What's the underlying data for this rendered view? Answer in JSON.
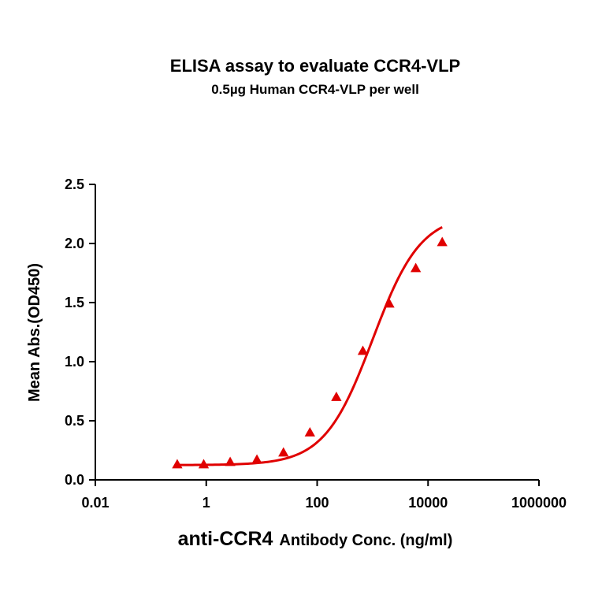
{
  "chart_data": {
    "type": "scatter",
    "title": "ELISA assay to evaluate CCR4-VLP",
    "subtitle": "0.5µg Human CCR4-VLP per well",
    "xlabel_main": "anti-CCR4",
    "xlabel_rest": "Antibody Conc. (ng/ml)",
    "ylabel": "Mean Abs.(OD450)",
    "x_scale": "log",
    "xlim": [
      0.01,
      1000000
    ],
    "ylim": [
      0.0,
      2.5
    ],
    "x_ticks": [
      0.01,
      1,
      100,
      10000,
      1000000
    ],
    "x_tick_labels": [
      "0.01",
      "1",
      "100",
      "10000",
      "1000000"
    ],
    "y_ticks": [
      0.0,
      0.5,
      1.0,
      1.5,
      2.0,
      2.5
    ],
    "y_tick_labels": [
      "0.0",
      "0.5",
      "1.0",
      "1.5",
      "2.0",
      "2.5"
    ],
    "grid": false,
    "color": "#e00000",
    "marker": "triangle",
    "series": [
      {
        "x": [
          0.3,
          0.9,
          2.7,
          8.2,
          24.7,
          74,
          222,
          667,
          2000,
          6000,
          18000
        ],
        "y": [
          0.13,
          0.13,
          0.15,
          0.17,
          0.23,
          0.4,
          0.7,
          1.09,
          1.49,
          1.79,
          2.01
        ]
      }
    ],
    "fit_curve": {
      "model": "4PL",
      "bottom": 0.125,
      "top": 2.25,
      "ec50": 1000,
      "hill": 1.0
    }
  }
}
